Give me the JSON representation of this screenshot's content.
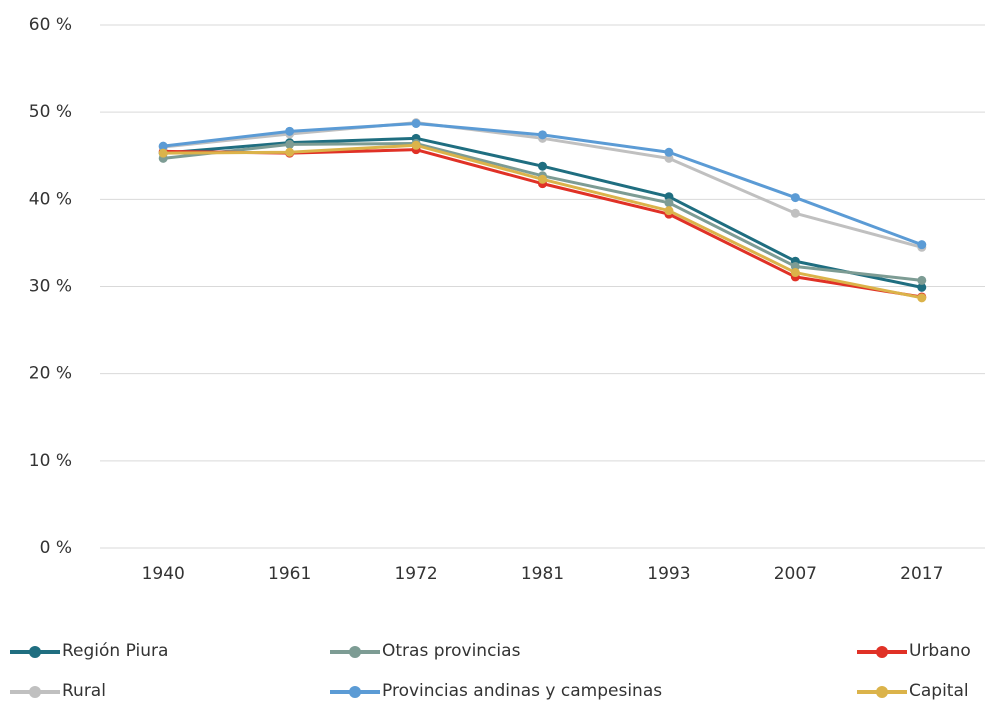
{
  "chart_data": {
    "type": "line",
    "categories": [
      "1940",
      "1961",
      "1972",
      "1981",
      "1993",
      "2007",
      "2017"
    ],
    "ylim": [
      0,
      60
    ],
    "yticks": [
      {
        "value": 0,
        "label": "0 %"
      },
      {
        "value": 10,
        "label": "10 %"
      },
      {
        "value": 20,
        "label": "20 %"
      },
      {
        "value": 30,
        "label": "30 %"
      },
      {
        "value": 40,
        "label": "40 %"
      },
      {
        "value": 50,
        "label": "50 %"
      },
      {
        "value": 60,
        "label": "60 %"
      }
    ],
    "grid": true,
    "series": [
      {
        "name": "Región Piura",
        "color": "#1f6e80",
        "values": [
          45.3,
          46.5,
          47.0,
          43.8,
          40.3,
          32.9,
          29.9
        ]
      },
      {
        "name": "Otras provincias",
        "color": "#7d9c94",
        "values": [
          44.7,
          46.3,
          46.4,
          42.7,
          39.6,
          32.3,
          30.7
        ]
      },
      {
        "name": "Urbano",
        "color": "#e03126",
        "values": [
          45.5,
          45.3,
          45.7,
          41.8,
          38.3,
          31.1,
          28.8
        ]
      },
      {
        "name": "Rural",
        "color": "#c0c0c0",
        "values": [
          46.0,
          47.5,
          48.8,
          47.0,
          44.7,
          38.4,
          34.5
        ]
      },
      {
        "name": "Provincias andinas y campesinas",
        "color": "#5b9bd5",
        "values": [
          46.1,
          47.8,
          48.7,
          47.4,
          45.4,
          40.2,
          34.8
        ]
      },
      {
        "name": "Capital",
        "color": "#dbb34a",
        "values": [
          45.3,
          45.4,
          46.2,
          42.3,
          38.7,
          31.6,
          28.7
        ]
      }
    ]
  }
}
